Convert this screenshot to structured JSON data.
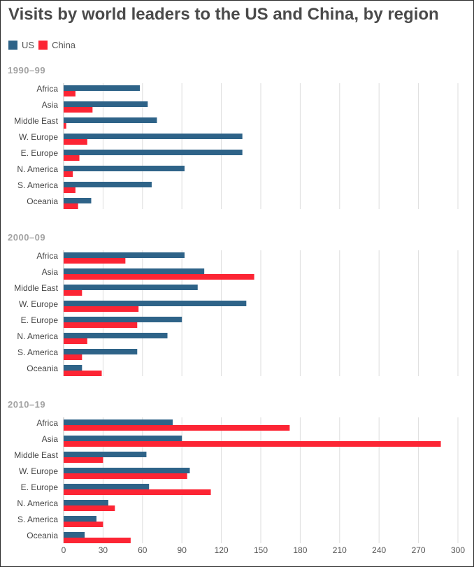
{
  "title": "Visits by world leaders to the US and China, by region",
  "colors": {
    "US": "#2e6388",
    "China": "#fc2534",
    "grid": "#dddddd",
    "panel_title": "#a3a3a3",
    "label": "#444444"
  },
  "legend": [
    {
      "label": "US",
      "color": "#2e6388"
    },
    {
      "label": "China",
      "color": "#fc2534"
    }
  ],
  "chart_data": {
    "type": "bar",
    "orientation": "horizontal",
    "title": "Visits by world leaders to the US and China, by region",
    "xlim": [
      0,
      300
    ],
    "xticks": [
      0,
      30,
      60,
      90,
      120,
      150,
      180,
      210,
      240,
      270,
      300
    ],
    "grid": true,
    "legend_position": "top-left",
    "categories": [
      "Africa",
      "Asia",
      "Middle East",
      "W. Europe",
      "E. Europe",
      "N. America",
      "S. America",
      "Oceania"
    ],
    "panels": [
      {
        "title": "1990–99",
        "series": [
          {
            "name": "US",
            "values": [
              58,
              64,
              71,
              136,
              136,
              92,
              67,
              21
            ]
          },
          {
            "name": "China",
            "values": [
              9,
              22,
              2,
              18,
              12,
              7,
              9,
              11
            ]
          }
        ]
      },
      {
        "title": "2000–09",
        "series": [
          {
            "name": "US",
            "values": [
              92,
              107,
              102,
              139,
              90,
              79,
              56,
              14
            ]
          },
          {
            "name": "China",
            "values": [
              47,
              145,
              14,
              57,
              56,
              18,
              14,
              29
            ]
          }
        ]
      },
      {
        "title": "2010–19",
        "series": [
          {
            "name": "US",
            "values": [
              83,
              90,
              63,
              96,
              65,
              34,
              25,
              16
            ]
          },
          {
            "name": "China",
            "values": [
              172,
              287,
              30,
              94,
              112,
              39,
              30,
              51
            ]
          }
        ]
      }
    ]
  }
}
